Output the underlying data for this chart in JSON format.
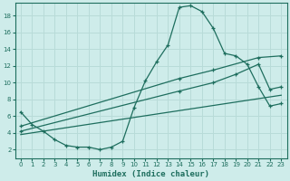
{
  "xlabel": "Humidex (Indice chaleur)",
  "bg_color": "#ceecea",
  "grid_color": "#b8dbd8",
  "line_color": "#1e6e5e",
  "xlim": [
    -0.5,
    23.5
  ],
  "ylim": [
    1.0,
    19.5
  ],
  "xticks": [
    0,
    1,
    2,
    3,
    4,
    5,
    6,
    7,
    8,
    9,
    10,
    11,
    12,
    13,
    14,
    15,
    16,
    17,
    18,
    19,
    20,
    21,
    22,
    23
  ],
  "yticks": [
    2,
    4,
    6,
    8,
    10,
    12,
    14,
    16,
    18
  ],
  "curve_main_x": [
    0,
    1,
    2,
    3,
    4,
    5,
    6,
    7,
    8,
    9,
    10,
    11,
    12,
    13,
    14,
    15,
    16,
    17,
    18,
    19,
    20,
    21,
    22,
    23
  ],
  "curve_main_y": [
    6.5,
    5.0,
    4.2,
    3.2,
    2.5,
    2.3,
    2.3,
    2.0,
    2.3,
    3.0,
    7.0,
    10.2,
    12.5,
    14.5,
    19.0,
    19.2,
    18.5,
    16.5,
    13.5,
    13.2,
    12.2,
    9.5,
    7.2,
    7.5
  ],
  "line1_x": [
    0,
    14,
    17,
    21,
    23
  ],
  "line1_y": [
    4.8,
    10.5,
    11.5,
    13.0,
    13.2
  ],
  "line2_x": [
    0,
    14,
    17,
    19,
    21,
    22,
    23
  ],
  "line2_y": [
    4.2,
    9.0,
    10.0,
    11.0,
    12.2,
    9.2,
    9.5
  ],
  "line3_x": [
    0,
    23
  ],
  "line3_y": [
    3.8,
    8.5
  ]
}
